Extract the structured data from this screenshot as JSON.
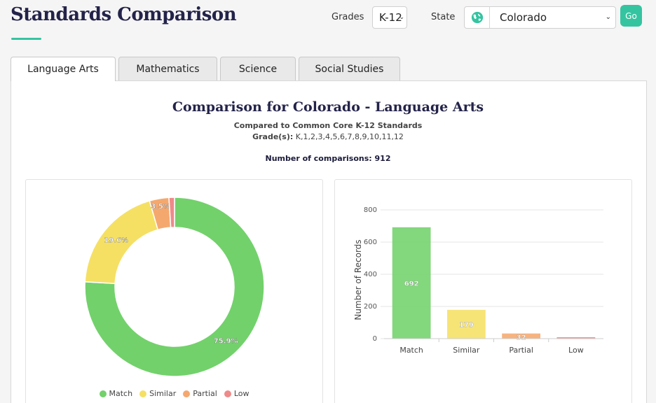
{
  "header": {
    "title": "Standards Comparison",
    "grades_label": "Grades",
    "grade_value": "K-12",
    "state_label": "State",
    "state_value": "Colorado",
    "go_label": "Go"
  },
  "tabs": [
    {
      "label": "Language Arts",
      "active": true
    },
    {
      "label": "Mathematics",
      "active": false
    },
    {
      "label": "Science",
      "active": false
    },
    {
      "label": "Social Studies",
      "active": false
    }
  ],
  "comparison": {
    "title": "Comparison for Colorado - Language Arts",
    "subtitle": "Compared to Common Core K-12 Standards",
    "grades_label": "Grade(s):",
    "grades_value": "K,1,2,3,4,5,6,7,8,9,10,11,12",
    "num_comparisons": "Number of comparisons: 912"
  },
  "colors": {
    "accent": "#35c4a0",
    "match": "#72d16b",
    "similar": "#f5e064",
    "partial": "#f5a86e",
    "low": "#ee8a8a"
  },
  "chart_data": [
    {
      "type": "pie",
      "categories": [
        "Match",
        "Similar",
        "Partial",
        "Low"
      ],
      "values": [
        75.9,
        19.6,
        3.5,
        1.0
      ],
      "labels": [
        "75.9%",
        "19.6%",
        "3.5%",
        ""
      ],
      "legend": "bottom"
    },
    {
      "type": "bar",
      "categories": [
        "Match",
        "Similar",
        "Partial",
        "Low"
      ],
      "values": [
        692,
        179,
        32,
        9
      ],
      "data_labels": [
        "692",
        "179",
        "32",
        ""
      ],
      "ylabel": "Number of Records",
      "ylim": [
        0,
        800
      ],
      "yticks": [
        0,
        200,
        400,
        600,
        800
      ],
      "grid": true
    }
  ]
}
